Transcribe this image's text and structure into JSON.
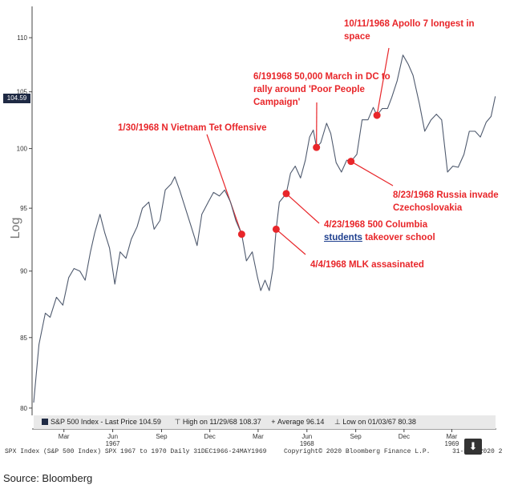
{
  "chart_data": {
    "type": "line",
    "ylabel": "Log",
    "ylim": [
      79.5,
      113
    ],
    "y_ticks": [
      80,
      85,
      90,
      95,
      100,
      105,
      110
    ],
    "y_scale": "log",
    "x_range": [
      "1966-12-31",
      "1969-05-24"
    ],
    "x_ticks": [
      {
        "label": "Mar",
        "year": "",
        "date": "1967-03-01"
      },
      {
        "label": "Jun",
        "year": "1967",
        "date": "1967-06-01"
      },
      {
        "label": "Sep",
        "year": "",
        "date": "1967-09-01"
      },
      {
        "label": "Dec",
        "year": "",
        "date": "1967-12-01"
      },
      {
        "label": "Mar",
        "year": "",
        "date": "1968-03-01"
      },
      {
        "label": "Jun",
        "year": "1968",
        "date": "1968-06-01"
      },
      {
        "label": "Sep",
        "year": "",
        "date": "1968-09-01"
      },
      {
        "label": "Dec",
        "year": "",
        "date": "1968-12-01"
      },
      {
        "label": "Mar",
        "year": "1969",
        "date": "1969-03-01"
      }
    ],
    "series": [
      {
        "name": "S&P 500 Index - Last Price",
        "color": "#4f5a6e",
        "points": [
          [
            "1967-01-03",
            80.38
          ],
          [
            "1967-01-13",
            84.5
          ],
          [
            "1967-01-25",
            86.8
          ],
          [
            "1967-02-03",
            86.5
          ],
          [
            "1967-02-15",
            88.0
          ],
          [
            "1967-02-27",
            87.4
          ],
          [
            "1967-03-10",
            89.5
          ],
          [
            "1967-03-20",
            90.2
          ],
          [
            "1967-03-31",
            90.0
          ],
          [
            "1967-04-10",
            89.3
          ],
          [
            "1967-04-20",
            91.5
          ],
          [
            "1967-04-28",
            93.0
          ],
          [
            "1967-05-08",
            94.5
          ],
          [
            "1967-05-17",
            93.0
          ],
          [
            "1967-05-26",
            91.8
          ],
          [
            "1967-06-05",
            89.0
          ],
          [
            "1967-06-15",
            91.5
          ],
          [
            "1967-06-26",
            91.0
          ],
          [
            "1967-07-06",
            92.5
          ],
          [
            "1967-07-17",
            93.5
          ],
          [
            "1967-07-27",
            95.0
          ],
          [
            "1967-08-08",
            95.5
          ],
          [
            "1967-08-18",
            93.3
          ],
          [
            "1967-08-29",
            94.0
          ],
          [
            "1967-09-08",
            96.5
          ],
          [
            "1967-09-19",
            97.0
          ],
          [
            "1967-09-26",
            97.6
          ],
          [
            "1967-10-05",
            96.5
          ],
          [
            "1967-10-16",
            95.0
          ],
          [
            "1967-10-27",
            93.5
          ],
          [
            "1967-11-07",
            92.0
          ],
          [
            "1967-11-16",
            94.5
          ],
          [
            "1967-11-28",
            95.5
          ],
          [
            "1967-12-08",
            96.3
          ],
          [
            "1967-12-19",
            96.0
          ],
          [
            "1967-12-29",
            96.5
          ],
          [
            "1968-01-09",
            95.5
          ],
          [
            "1968-01-19",
            94.0
          ],
          [
            "1968-01-30",
            92.9
          ],
          [
            "1968-02-08",
            90.8
          ],
          [
            "1968-02-19",
            91.5
          ],
          [
            "1968-02-29",
            89.5
          ],
          [
            "1968-03-06",
            88.5
          ],
          [
            "1968-03-14",
            89.3
          ],
          [
            "1968-03-22",
            88.5
          ],
          [
            "1968-03-29",
            90.2
          ],
          [
            "1968-04-04",
            93.3
          ],
          [
            "1968-04-10",
            95.5
          ],
          [
            "1968-04-23",
            96.2
          ],
          [
            "1968-05-01",
            97.9
          ],
          [
            "1968-05-10",
            98.5
          ],
          [
            "1968-05-20",
            97.5
          ],
          [
            "1968-05-29",
            99.0
          ],
          [
            "1968-06-06",
            101.0
          ],
          [
            "1968-06-13",
            101.6
          ],
          [
            "1968-06-19",
            100.1
          ],
          [
            "1968-06-27",
            100.5
          ],
          [
            "1968-07-08",
            102.2
          ],
          [
            "1968-07-16",
            101.3
          ],
          [
            "1968-07-26",
            98.8
          ],
          [
            "1968-08-05",
            98.0
          ],
          [
            "1968-08-15",
            99.0
          ],
          [
            "1968-08-23",
            98.9
          ],
          [
            "1968-09-03",
            99.5
          ],
          [
            "1968-09-13",
            102.5
          ],
          [
            "1968-09-24",
            102.5
          ],
          [
            "1968-10-04",
            103.6
          ],
          [
            "1968-10-11",
            102.9
          ],
          [
            "1968-10-21",
            103.5
          ],
          [
            "1968-10-31",
            103.5
          ],
          [
            "1968-11-08",
            104.5
          ],
          [
            "1968-11-18",
            106.0
          ],
          [
            "1968-11-29",
            108.37
          ],
          [
            "1968-12-09",
            107.5
          ],
          [
            "1968-12-18",
            106.5
          ],
          [
            "1968-12-30",
            103.9
          ],
          [
            "1969-01-09",
            101.5
          ],
          [
            "1969-01-21",
            102.5
          ],
          [
            "1969-01-31",
            103.0
          ],
          [
            "1969-02-10",
            102.5
          ],
          [
            "1969-02-21",
            98.0
          ],
          [
            "1969-03-03",
            98.5
          ],
          [
            "1969-03-13",
            98.4
          ],
          [
            "1969-03-24",
            99.5
          ],
          [
            "1969-04-03",
            101.5
          ],
          [
            "1969-04-14",
            101.5
          ],
          [
            "1969-04-24",
            101.0
          ],
          [
            "1969-05-05",
            102.3
          ],
          [
            "1969-05-14",
            102.8
          ],
          [
            "1969-05-22",
            104.59
          ]
        ]
      }
    ],
    "events": [
      {
        "date": "1968-01-30",
        "value": 92.9
      },
      {
        "date": "1968-04-04",
        "value": 93.3
      },
      {
        "date": "1968-04-23",
        "value": 96.2
      },
      {
        "date": "1968-06-19",
        "value": 100.1
      },
      {
        "date": "1968-08-23",
        "value": 98.9
      },
      {
        "date": "1968-10-11",
        "value": 102.9
      }
    ],
    "last_price_label": "104.59",
    "grid": false
  },
  "legend": {
    "series": "S&P 500 Index - Last Price 104.59",
    "high": "High on 11/29/68 108.37",
    "average": "Average 96.14",
    "low": "Low on 01/03/67 80.38"
  },
  "annotations": {
    "tet": "1/30/1968 N Vietnam Tet Offensive",
    "mlk": "4/4/1968 MLK assasinated",
    "columbia_1": "4/23/1968 500 Columbia",
    "columbia_2a": "students",
    "columbia_2b": " takeover school",
    "march_1": "6/191968 50,000 March in DC to",
    "march_2": "rally around 'Poor People",
    "march_3": "Campaign'",
    "russia_1": "8/23/1968 Russia invade",
    "russia_2": "Czechoslovakia",
    "apollo_1": "10/11/1968 Apollo 7 longest in",
    "apollo_2": "space"
  },
  "footer": {
    "left": "SPX Index (S&P 500 Index) SPX 1967 to 1970  Daily 31DEC1966-24MAY1969",
    "center": "Copyright© 2020 Bloomberg Finance L.P.",
    "right": "31-May-2020 2"
  },
  "source": "Source: Bloomberg",
  "colors": {
    "line": "#4f5a6e",
    "annotation": "#e8262a",
    "marker": "#e8262a"
  }
}
